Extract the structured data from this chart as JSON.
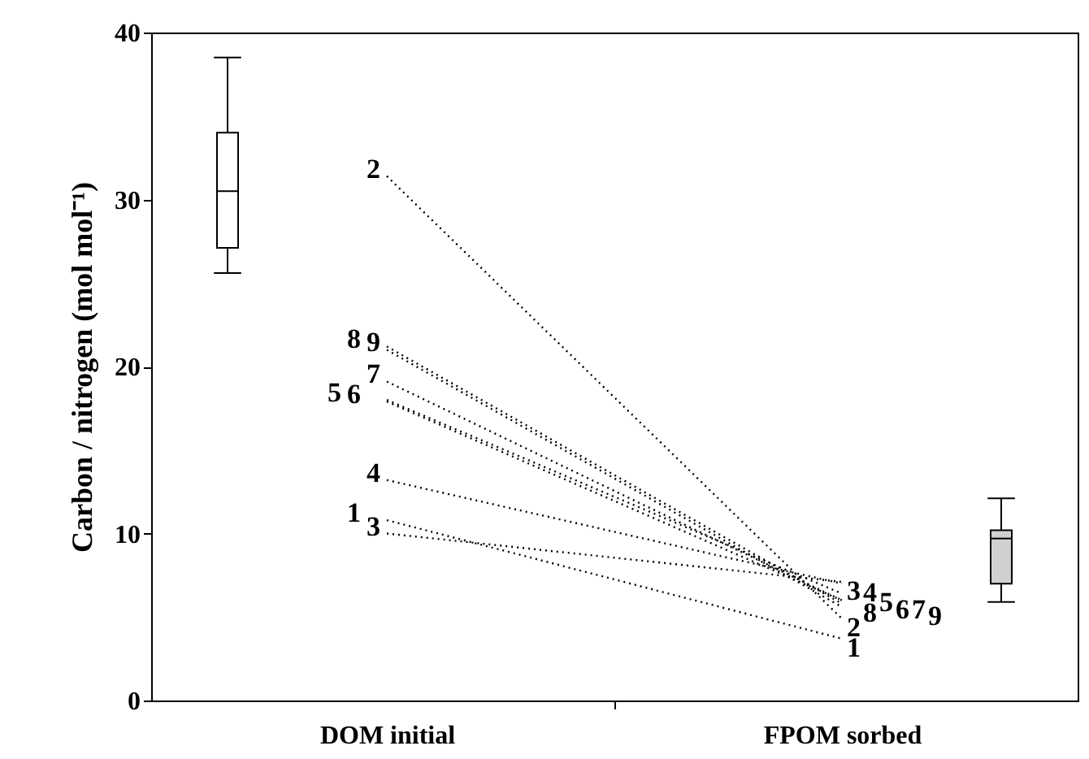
{
  "chart_data": {
    "type": "line",
    "ylabel": "Carbon / nitrogen (mol mol⁻¹)",
    "categories": [
      "DOM initial",
      "FPOM sorbed"
    ],
    "ylim": [
      0,
      40
    ],
    "yticks": [
      0,
      10,
      20,
      30,
      40
    ],
    "grid": false,
    "marker": "none",
    "line_style": "dotted",
    "series": [
      {
        "type": "box",
        "color": "#000000",
        "colors": [
          "#ffffff",
          "#d0d0d0"
        ],
        "boxes": [
          {
            "low": 25.6,
            "q1": 27.1,
            "median": 30.5,
            "q3": 34.0,
            "high": 38.5
          },
          {
            "low": 5.9,
            "q1": 7.0,
            "median": 9.7,
            "q3": 10.2,
            "high": 12.1
          }
        ]
      },
      {
        "name": "1",
        "color": "#000000",
        "values": [
          10.8,
          3.7
        ]
      },
      {
        "name": "2",
        "color": "#000000",
        "values": [
          31.4,
          4.9
        ]
      },
      {
        "name": "3",
        "color": "#000000",
        "values": [
          10.0,
          7.1
        ]
      },
      {
        "name": "4",
        "color": "#000000",
        "values": [
          13.2,
          7.0
        ]
      },
      {
        "name": "5",
        "color": "#000000",
        "values": [
          18.0,
          6.4
        ]
      },
      {
        "name": "6",
        "color": "#000000",
        "values": [
          17.9,
          6.0
        ]
      },
      {
        "name": "7",
        "color": "#000000",
        "values": [
          19.1,
          6.0
        ]
      },
      {
        "name": "8",
        "color": "#000000",
        "values": [
          21.2,
          5.8
        ]
      },
      {
        "name": "9",
        "color": "#000000",
        "values": [
          21.0,
          5.6
        ]
      }
    ]
  }
}
